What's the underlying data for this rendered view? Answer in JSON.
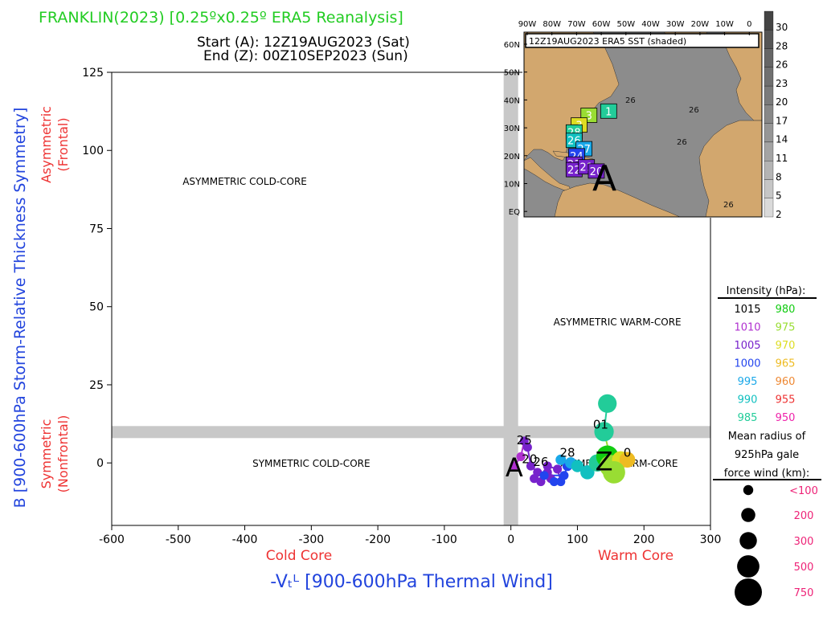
{
  "header": {
    "title": "FRANKLIN(2023) [0.25ºx0.25º ERA5 Reanalysis]",
    "start": "Start (A): 12Z19AUG2023 (Sat)",
    "end": "End (Z): 00Z10SEP2023 (Sun)"
  },
  "colors": {
    "title": "#22cc22",
    "axis_title": "#2244dd",
    "accent_red": "#ee3333",
    "quadrant_bar": "#c8c8c8",
    "ocean": "#8c8c8c",
    "land": "#d2a76e"
  },
  "chart_data": {
    "type": "scatter",
    "title": "FRANKLIN(2023) [0.25ºx0.25º ERA5 Reanalysis]",
    "xlabel": "-Vₜᴸ [900-600hPa Thermal Wind]",
    "ylabel": "B [900-600hPa Storm-Relative Thickness Symmetry]",
    "xlim": [
      -600,
      300
    ],
    "ylim": [
      -20,
      125
    ],
    "xticks": [
      -600,
      -500,
      -400,
      -300,
      -200,
      -100,
      0,
      100,
      200,
      300
    ],
    "yticks": [
      0,
      25,
      50,
      75,
      100,
      125
    ],
    "x_sublabels": {
      "left": "Cold Core",
      "right": "Warm Core"
    },
    "y_sublabels": {
      "upper_1": "Asymmetric",
      "upper_2": "(Frontal)",
      "lower_1": "Symmetric",
      "lower_2": "(Nonfrontal)"
    },
    "quadrants": {
      "asym_cold": "ASYMMETRIC COLD-CORE",
      "asym_warm": "ASYMMETRIC WARM-CORE",
      "sym_cold": "SYMMETRIC COLD-CORE",
      "sym_warm": "SYMMETRIC WARM-CORE"
    },
    "series": [
      {
        "points": [
          {
            "x": 5,
            "y": -1,
            "p": 1008,
            "r": 80
          },
          {
            "x": 15,
            "y": 2,
            "p": 1008,
            "r": 80
          },
          {
            "x": 20,
            "y": 7,
            "p": 1007,
            "r": 80
          },
          {
            "x": 25,
            "y": 5,
            "p": 1007,
            "r": 80
          },
          {
            "x": 30,
            "y": -1,
            "p": 1006,
            "r": 80
          },
          {
            "x": 40,
            "y": -3,
            "p": 1006,
            "r": 80
          },
          {
            "x": 35,
            "y": -5,
            "p": 1005,
            "r": 80
          },
          {
            "x": 45,
            "y": -6,
            "p": 1005,
            "r": 80
          },
          {
            "x": 55,
            "y": -3,
            "p": 1004,
            "r": 80
          },
          {
            "x": 60,
            "y": -5,
            "p": 1004,
            "r": 80
          },
          {
            "x": 55,
            "y": -1,
            "p": 1004,
            "r": 80
          },
          {
            "x": 70,
            "y": -2,
            "p": 1003,
            "r": 80
          },
          {
            "x": 75,
            "y": -6,
            "p": 1002,
            "r": 80
          },
          {
            "x": 65,
            "y": -6,
            "p": 1001,
            "r": 80
          },
          {
            "x": 50,
            "y": -4,
            "p": 1002,
            "r": 80
          },
          {
            "x": 80,
            "y": -4,
            "p": 1000,
            "r": 80
          },
          {
            "x": 85,
            "y": -1,
            "p": 998,
            "r": 100
          },
          {
            "x": 75,
            "y": 1,
            "p": 996,
            "r": 110
          },
          {
            "x": 90,
            "y": 0,
            "p": 994,
            "r": 130
          },
          {
            "x": 100,
            "y": -1,
            "p": 991,
            "r": 150
          },
          {
            "x": 115,
            "y": -3,
            "p": 988,
            "r": 200
          },
          {
            "x": 130,
            "y": 0,
            "p": 985,
            "r": 300
          },
          {
            "x": 145,
            "y": 2,
            "p": 980,
            "r": 500
          },
          {
            "x": 150,
            "y": -1,
            "p": 977,
            "r": 500
          },
          {
            "x": 165,
            "y": 1,
            "p": 970,
            "r": 300
          },
          {
            "x": 175,
            "y": 1,
            "p": 965,
            "r": 250
          },
          {
            "x": 155,
            "y": -3,
            "p": 975,
            "r": 500
          },
          {
            "x": 140,
            "y": 10,
            "p": 986,
            "r": 380
          },
          {
            "x": 145,
            "y": 19,
            "p": 987,
            "r": 350
          }
        ]
      }
    ],
    "point_labels": [
      {
        "text": "A",
        "x": 5,
        "y": -1
      },
      {
        "text": "25",
        "x": 20,
        "y": 7
      },
      {
        "text": "20",
        "x": 28,
        "y": 1
      },
      {
        "text": "26",
        "x": 45,
        "y": 0
      },
      {
        "text": "28",
        "x": 85,
        "y": 3
      },
      {
        "text": "01",
        "x": 135,
        "y": 12
      },
      {
        "text": "0",
        "x": 175,
        "y": 3
      },
      {
        "text": "Z",
        "x": 140,
        "y": 1
      }
    ]
  },
  "intensity_legend": {
    "title": "Intensity (hPa):",
    "left": [
      {
        "label": "1015",
        "color": "#000000"
      },
      {
        "label": "1010",
        "color": "#b030d0"
      },
      {
        "label": "1005",
        "color": "#7722cc"
      },
      {
        "label": "1000",
        "color": "#2244ee"
      },
      {
        "label": "995",
        "color": "#1aa8e8"
      },
      {
        "label": "990",
        "color": "#11c0c0"
      },
      {
        "label": "985",
        "color": "#22cc99"
      }
    ],
    "right": [
      {
        "label": "980",
        "color": "#11cc11"
      },
      {
        "label": "975",
        "color": "#99dd33"
      },
      {
        "label": "970",
        "color": "#dddd22"
      },
      {
        "label": "965",
        "color": "#eebb22"
      },
      {
        "label": "960",
        "color": "#ee8833"
      },
      {
        "label": "955",
        "color": "#ee3333"
      },
      {
        "label": "950",
        "color": "#ee22aa"
      }
    ]
  },
  "radius_legend": {
    "title_1": "Mean radius of",
    "title_2": "925hPa gale",
    "title_3": "force wind (km):",
    "items": [
      {
        "label": "<100",
        "value": 100
      },
      {
        "label": "200",
        "value": 200
      },
      {
        "label": "300",
        "value": 300
      },
      {
        "label": "500",
        "value": 500
      },
      {
        "label": "750",
        "value": 750
      }
    ],
    "label_color": "#ee2277"
  },
  "inset_map": {
    "title": "12Z19AUG2023 ERA5 SST (shaded)",
    "lon_labels": [
      "90W",
      "80W",
      "70W",
      "60W",
      "50W",
      "40W",
      "30W",
      "20W",
      "10W",
      "0"
    ],
    "lat_labels": [
      "60N",
      "50N",
      "40N",
      "30N",
      "20N",
      "10N",
      "EQ"
    ],
    "colorbar": [
      "30",
      "28",
      "26",
      "23",
      "20",
      "17",
      "14",
      "11",
      "8",
      "5",
      "2"
    ],
    "contour_label": "26",
    "start_marker": "A",
    "track": [
      {
        "label": "1",
        "lon": -57,
        "lat": 36,
        "color": "#22cc99"
      },
      {
        "label": "3",
        "lon": -65,
        "lat": 34.5,
        "color": "#99dd33"
      },
      {
        "label": "3",
        "lon": -69,
        "lat": 31,
        "color": "#dddd22"
      },
      {
        "label": "28",
        "lon": -71,
        "lat": 28.5,
        "color": "#22cc99"
      },
      {
        "label": "26",
        "lon": -71,
        "lat": 25.5,
        "color": "#11c0c0"
      },
      {
        "label": "27",
        "lon": -67,
        "lat": 22.5,
        "color": "#1aa8e8"
      },
      {
        "label": "24",
        "lon": -70,
        "lat": 20,
        "color": "#2244ee"
      },
      {
        "label": "23",
        "lon": -71,
        "lat": 17,
        "color": "#7722cc"
      },
      {
        "label": "22",
        "lon": -71,
        "lat": 15,
        "color": "#7722cc"
      },
      {
        "label": "21",
        "lon": -66,
        "lat": 16,
        "color": "#7722cc"
      },
      {
        "label": "20",
        "lon": -62,
        "lat": 14.5,
        "color": "#7722cc"
      }
    ]
  }
}
